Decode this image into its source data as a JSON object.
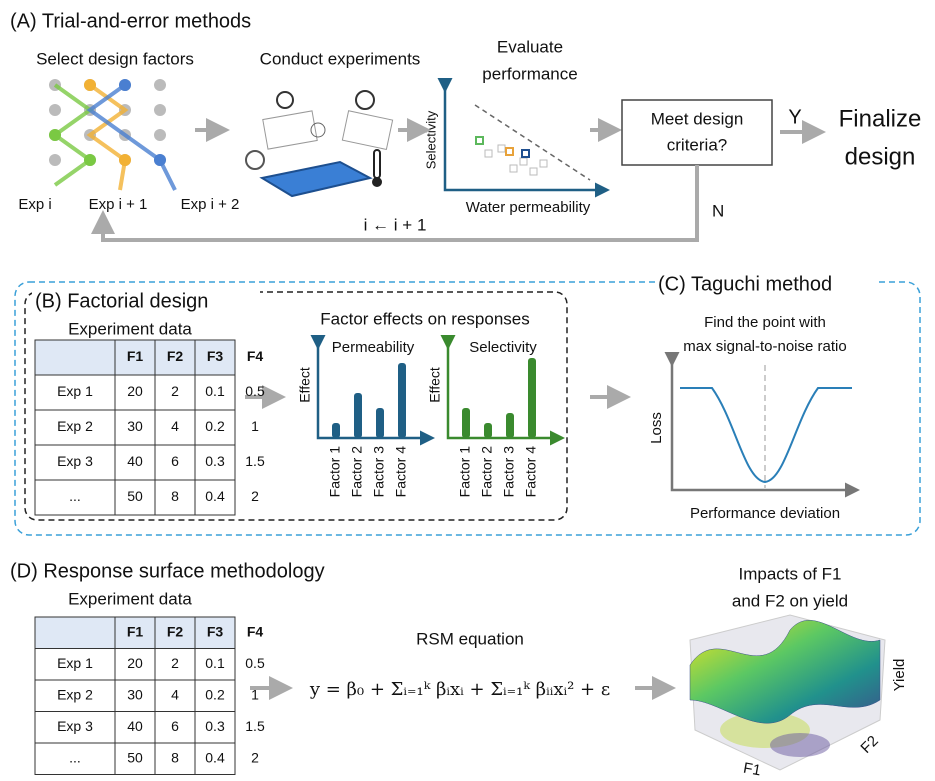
{
  "panel_a": {
    "title": "(A) Trial-and-error methods",
    "step1": "Select design factors",
    "step2": "Conduct experiments",
    "step3_line1": "Evaluate",
    "step3_line2": "performance",
    "y_axis": "Selectivity",
    "x_axis": "Water permeability",
    "decision": [
      "Meet design",
      "criteria?"
    ],
    "yes": "Y",
    "no": "N",
    "final": [
      "Finalize",
      "design"
    ],
    "exps": [
      "Exp i",
      "Exp i + 1",
      "Exp i + 2"
    ],
    "loop": "i ← i + 1"
  },
  "panel_b": {
    "title": "(B) Factorial design",
    "table_title": "Experiment data",
    "table": {
      "header": [
        "F1",
        "F2",
        "F3",
        "F4"
      ],
      "rows": [
        [
          "Exp 1",
          20,
          2,
          0.1,
          0.5
        ],
        [
          "Exp 2",
          30,
          4,
          0.2,
          1
        ],
        [
          "Exp 3",
          40,
          6,
          0.3,
          1.5
        ],
        [
          "...",
          50,
          8,
          0.4,
          2
        ]
      ]
    },
    "effects_title": "Factor effects on responses",
    "y_label": "Effect",
    "charts": [
      {
        "name": "Permeability",
        "color": "#1f5f85",
        "values": [
          15,
          45,
          30,
          75
        ]
      },
      {
        "name": "Selectivity",
        "color": "#3a8a2e",
        "values": [
          30,
          15,
          25,
          80
        ]
      }
    ],
    "factors": [
      "Factor 1",
      "Factor 2",
      "Factor 3",
      "Factor 4"
    ]
  },
  "panel_c": {
    "title": "(C) Taguchi method",
    "note": [
      "Find the point with",
      "max signal-to-noise ratio"
    ],
    "y_label": "Loss",
    "x_label": "Performance deviation"
  },
  "panel_d": {
    "title": "(D) Response surface methodology",
    "table_title": "Experiment data",
    "table": {
      "header": [
        "F1",
        "F2",
        "F3",
        "F4"
      ],
      "rows": [
        [
          "Exp 1",
          20,
          2,
          0.1,
          0.5
        ],
        [
          "Exp 2",
          30,
          4,
          0.2,
          1
        ],
        [
          "Exp 3",
          40,
          6,
          0.3,
          1.5
        ],
        [
          "...",
          50,
          8,
          0.4,
          2
        ]
      ]
    },
    "equation_title": "RSM equation",
    "equation": "y = β₀ + Σᵢ₌₁ᵏ βᵢxᵢ + Σᵢ₌₁ᵏ βᵢᵢxᵢ² + ε",
    "plot_title": [
      "Impacts of F1",
      "and F2 on yield"
    ],
    "z_label": "Yield",
    "x_label": "F1",
    "y_label": "F2"
  }
}
